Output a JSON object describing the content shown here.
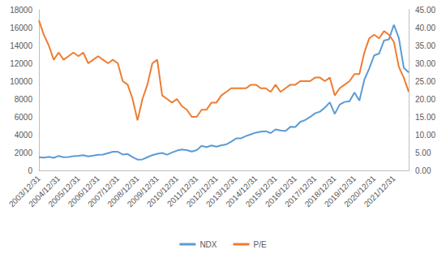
{
  "chart_data": {
    "type": "line",
    "categories": [
      "2003/12/31",
      null,
      null,
      null,
      "2004/12/31",
      null,
      null,
      null,
      "2005/12/31",
      null,
      null,
      null,
      "2006/12/31",
      null,
      null,
      null,
      "2007/12/31",
      null,
      null,
      null,
      "2008/12/31",
      null,
      null,
      null,
      "2009/12/31",
      null,
      null,
      null,
      "2010/12/31",
      null,
      null,
      null,
      "2011/12/31",
      null,
      null,
      null,
      "2012/12/31",
      null,
      null,
      null,
      "2013/12/31",
      null,
      null,
      null,
      "2014/12/31",
      null,
      null,
      null,
      "2015/12/31",
      null,
      null,
      null,
      "2016/12/31",
      null,
      null,
      null,
      "2017/12/31",
      null,
      null,
      null,
      "2018/12/31",
      null,
      null,
      null,
      "2019/12/31",
      null,
      null,
      null,
      "2020/12/31",
      null,
      null,
      null,
      "2021/12/31",
      null,
      null,
      null
    ],
    "series": [
      {
        "name": "NDX",
        "color": "#5b9bd5",
        "type": "line",
        "values": [
          1467,
          1438,
          1516,
          1412,
          1621,
          1483,
          1493,
          1601,
          1645,
          1703,
          1575,
          1655,
          1756,
          1772,
          1934,
          2091,
          2085,
          1781,
          1837,
          1483,
          1212,
          1237,
          1477,
          1711,
          1860,
          1957,
          1765,
          2007,
          2218,
          2338,
          2280,
          2114,
          2278,
          2755,
          2616,
          2800,
          2661,
          2819,
          2910,
          3219,
          3592,
          3596,
          3849,
          4049,
          4236,
          4334,
          4397,
          4181,
          4594,
          4484,
          4418,
          4876,
          4864,
          5436,
          5647,
          5979,
          6397,
          6581,
          7040,
          7628,
          6330,
          7378,
          7671,
          7750,
          8733,
          7813,
          10157,
          11418,
          12888,
          13091,
          14554,
          14690,
          16320,
          14838,
          11504,
          10971
        ]
      },
      {
        "name": "P/E",
        "color": "#ed7d31",
        "type": "line",
        "axis": "y2",
        "values": [
          42,
          38,
          35,
          31,
          33,
          31,
          32,
          33,
          32,
          33,
          30,
          31,
          32,
          31,
          30,
          31,
          30,
          25,
          24,
          20,
          14,
          20,
          24,
          30,
          31,
          21,
          20,
          19,
          20,
          18,
          17,
          15,
          15,
          17,
          17,
          19,
          19,
          21,
          22,
          23,
          23,
          23,
          23,
          24,
          24,
          23,
          23,
          22,
          24,
          22,
          23,
          24,
          24,
          25,
          25,
          25,
          26,
          26,
          25,
          26,
          21,
          23,
          24,
          25,
          27,
          27,
          33,
          37,
          38,
          37,
          39,
          38,
          36,
          29,
          26,
          22
        ]
      }
    ],
    "ylim": [
      0,
      18000
    ],
    "yticks": [
      0,
      2000,
      4000,
      6000,
      8000,
      10000,
      12000,
      14000,
      16000,
      18000
    ],
    "y2lim": [
      0,
      45
    ],
    "y2ticks": [
      {
        "value": 0,
        "label": "0.00"
      },
      {
        "value": 5,
        "label": "5.00"
      },
      {
        "value": 10,
        "label": "10.00"
      },
      {
        "value": 15,
        "label": "15.00"
      },
      {
        "value": 20,
        "label": "20.00"
      },
      {
        "value": 25,
        "label": "25.00"
      },
      {
        "value": 30,
        "label": "30.00"
      },
      {
        "value": 35,
        "label": "35.00"
      },
      {
        "value": 40,
        "label": "40.00"
      },
      {
        "value": 45,
        "label": "45.00"
      }
    ],
    "grid": false,
    "legend": "bottom"
  }
}
